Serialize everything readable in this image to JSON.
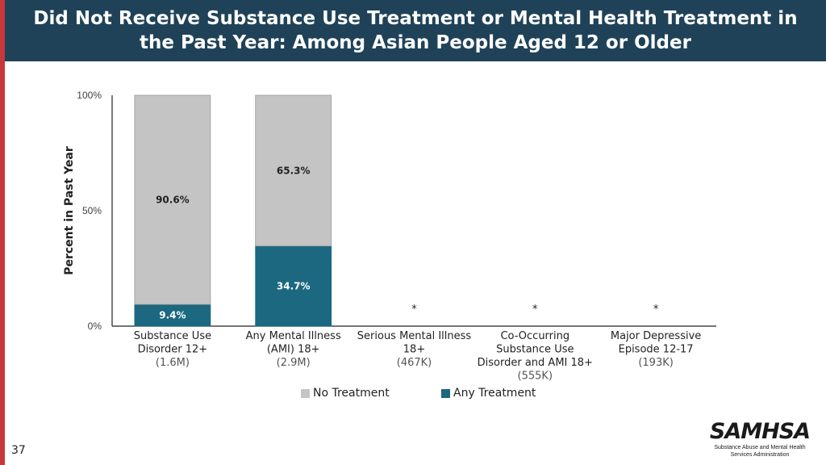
{
  "page": {
    "title_line1": "Did Not Receive Substance Use Treatment or Mental Health Treatment in",
    "title_line2": "the Past Year: Among Asian People Aged 12 or Older",
    "page_number": "37"
  },
  "logo": {
    "mark": "SAMHSA",
    "sub_line1": "Substance Abuse and Mental Health",
    "sub_line2": "Services Administration"
  },
  "colors": {
    "header_bg": "#1f4258",
    "accent_red": "#c8383b",
    "no_treatment": "#c4c4c4",
    "any_treatment": "#1b6880"
  },
  "chart_data": {
    "type": "bar",
    "stacked": true,
    "ylabel": "Percent in Past Year",
    "ylim": [
      0,
      100
    ],
    "yticks": [
      "0%",
      "50%",
      "100%"
    ],
    "ytick_values": [
      0,
      50,
      100
    ],
    "grid": false,
    "legend_position": "bottom",
    "categories": [
      {
        "lines": [
          "Substance Use",
          "Disorder 12+"
        ],
        "n": "(1.6M)"
      },
      {
        "lines": [
          "Any Mental Illness",
          "(AMI) 18+"
        ],
        "n": "(2.9M)"
      },
      {
        "lines": [
          "Serious Mental Illness",
          "18+"
        ],
        "n": "(467K)"
      },
      {
        "lines": [
          "Co-Occurring",
          "Substance Use",
          "Disorder and AMI 18+"
        ],
        "n": "(555K)"
      },
      {
        "lines": [
          "Major Depressive",
          "Episode 12-17"
        ],
        "n": "(193K)"
      }
    ],
    "series": [
      {
        "name": "Any Treatment",
        "values": [
          9.4,
          34.7,
          null,
          null,
          null
        ],
        "labels": [
          "9.4%",
          "34.7%",
          "",
          "",
          ""
        ]
      },
      {
        "name": "No Treatment",
        "values": [
          90.6,
          65.3,
          null,
          null,
          null
        ],
        "labels": [
          "90.6%",
          "65.3%",
          "",
          "",
          ""
        ]
      }
    ],
    "suppressed_marker": "*",
    "suppressed": [
      false,
      false,
      true,
      true,
      true
    ]
  }
}
